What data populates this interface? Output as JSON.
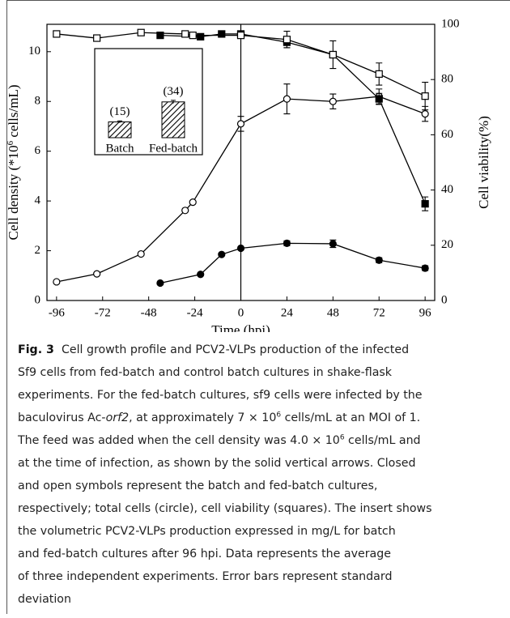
{
  "chart_data": [
    {
      "type": "line",
      "xlabel": "Time (hpi)",
      "ylabel": [
        "Cell density (*10",
        {
          "sup": "6"
        },
        " cells/mL)"
      ],
      "y2label": "Cell viability(%)",
      "xlim": [
        -101,
        101
      ],
      "xticks": [
        -96,
        -72,
        -48,
        -24,
        0,
        24,
        48,
        72,
        96
      ],
      "ylim": [
        0,
        11.1
      ],
      "yticks": [
        0,
        2,
        4,
        6,
        8,
        10
      ],
      "y2lim": [
        0,
        100
      ],
      "y2ticks": [
        0,
        20,
        40,
        60,
        80,
        100
      ],
      "series": [
        {
          "marker": "circle",
          "filled": true,
          "color": "#000000",
          "x": [
            -42,
            -21,
            -10,
            0,
            24,
            48,
            72,
            96
          ],
          "values": [
            0.7,
            1.05,
            1.85,
            2.1,
            2.3,
            2.28,
            1.62,
            1.3
          ],
          "errors": [
            null,
            null,
            null,
            null,
            0.1,
            0.15,
            0.1,
            0.1
          ]
        },
        {
          "marker": "circle",
          "filled": false,
          "color": "#000000",
          "x": [
            -96,
            -75,
            -52,
            -29,
            -25,
            0,
            24,
            48,
            72,
            96
          ],
          "values": [
            0.75,
            1.07,
            1.87,
            3.62,
            3.95,
            7.1,
            8.1,
            8.0,
            8.2,
            7.5
          ],
          "errors": [
            null,
            null,
            null,
            null,
            null,
            0.3,
            0.6,
            0.3,
            0.3,
            0.3
          ]
        },
        {
          "marker": "square",
          "filled": true,
          "color": "#000000",
          "axis": "y2",
          "x": [
            -42,
            -21,
            -10,
            0,
            24,
            48,
            72,
            96
          ],
          "values": [
            96,
            95.5,
            96.5,
            96.5,
            93.5,
            89,
            73,
            35
          ],
          "errors": [
            null,
            null,
            null,
            null,
            2,
            null,
            2,
            2.5
          ]
        },
        {
          "marker": "square",
          "filled": false,
          "color": "#000000",
          "axis": "y2",
          "x": [
            -96,
            -75,
            -52,
            -29,
            -25,
            0,
            24,
            48,
            72,
            96
          ],
          "values": [
            96.5,
            95,
            97,
            96.5,
            96,
            96,
            94.5,
            89,
            82,
            74
          ],
          "errors": [
            null,
            null,
            null,
            null,
            null,
            null,
            3,
            5,
            4,
            5
          ]
        }
      ]
    },
    {
      "type": "bar",
      "categories": [
        "Batch",
        "Fed-batch"
      ],
      "values": [
        15,
        34
      ],
      "value_labels": [
        "(15)",
        "(34)"
      ],
      "errors": [
        1,
        1.5
      ],
      "pattern": "hatch"
    }
  ],
  "caption": {
    "lines": [
      [
        {
          "bold": "Fig. 3"
        },
        "  Cell growth profile and PCV2-VLPs production of the infected"
      ],
      [
        "Sf9 cells from fed-batch and control batch cultures in shake-flask"
      ],
      [
        "experiments. For the fed-batch cultures, sf9 cells were infected by the"
      ],
      [
        "baculovirus Ac-",
        {
          "italic": "orf2"
        },
        ", at approximately 7 × 10",
        {
          "sup": "6"
        },
        " cells/mL at an MOI of 1."
      ],
      [
        "The feed was added when the cell density was 4.0 × 10",
        {
          "sup": "6"
        },
        " cells/mL and"
      ],
      [
        "at the time of infection, as shown by the solid vertical arrows. Closed"
      ],
      [
        "and open symbols represent the batch and fed-batch cultures,"
      ],
      [
        "respectively; total cells (circle), cell viability (squares). The insert shows"
      ],
      [
        "the volumetric PCV2-VLPs production expressed in mg/L for batch"
      ],
      [
        "and fed-batch cultures after 96 hpi. Data represents the average"
      ],
      [
        "of three independent experiments. Error bars represent standard"
      ],
      [
        "deviation"
      ]
    ]
  }
}
